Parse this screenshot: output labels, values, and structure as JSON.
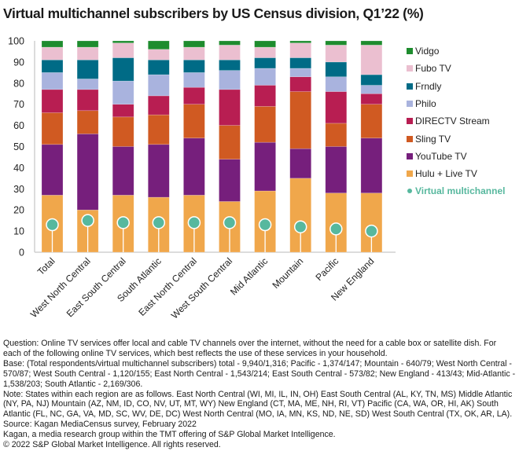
{
  "title": "Virtual multichannel subscribers by US Census division, Q1’22 (%)",
  "chart_data": {
    "type": "bar",
    "stacked": true,
    "title": "Virtual multichannel subscribers by US Census division, Q1’22 (%)",
    "xlabel": "",
    "ylabel": "",
    "ylim": [
      0,
      100
    ],
    "yticks": [
      0,
      10,
      20,
      30,
      40,
      50,
      60,
      70,
      80,
      90,
      100
    ],
    "grid": false,
    "legend_position": "right",
    "categories": [
      "Total",
      "West North Central",
      "East South Central",
      "South Atlantic",
      "East North Central",
      "West South Central",
      "Mid Atlantic",
      "Mountain",
      "Pacific",
      "New England"
    ],
    "series": [
      {
        "name": "Hulu + Live TV",
        "color": "#f0a74b",
        "values": [
          27,
          20,
          27,
          26,
          27,
          24,
          29,
          35,
          28,
          28
        ]
      },
      {
        "name": "YouTube TV",
        "color": "#761f7c",
        "values": [
          24,
          36,
          23,
          25,
          27,
          20,
          23,
          14,
          22,
          26
        ]
      },
      {
        "name": "Sling TV",
        "color": "#d05a22",
        "values": [
          15,
          11,
          14,
          14,
          16,
          16,
          17,
          27,
          11,
          16
        ]
      },
      {
        "name": "DIRECTV Stream",
        "color": "#b81e52",
        "values": [
          11,
          10,
          6,
          9,
          8,
          17,
          10,
          7,
          15,
          5
        ]
      },
      {
        "name": "Philo",
        "color": "#a9b3de",
        "values": [
          8,
          5,
          11,
          10,
          7,
          9,
          8,
          4,
          7,
          4
        ]
      },
      {
        "name": "Frndly",
        "color": "#006b86",
        "values": [
          6,
          9,
          11,
          7,
          6,
          5,
          5,
          5,
          7,
          5
        ]
      },
      {
        "name": "Fubo TV",
        "color": "#ebbfd0",
        "values": [
          6,
          6,
          7,
          5,
          6,
          7,
          5,
          7,
          8,
          14
        ]
      },
      {
        "name": "Vidgo",
        "color": "#1e8c2e",
        "values": [
          3,
          3,
          1,
          4,
          3,
          2,
          3,
          1,
          2,
          2
        ]
      }
    ],
    "overlay": {
      "name": "Virtual multichannel",
      "type": "dot",
      "color": "#57b89e",
      "values": [
        13,
        15,
        14,
        14,
        14,
        14,
        13,
        12,
        11,
        10
      ]
    },
    "legend_order": [
      "Vidgo",
      "Fubo TV",
      "Frndly",
      "Philo",
      "DIRECTV Stream",
      "Sling TV",
      "YouTube TV",
      "Hulu + Live TV",
      "Virtual multichannel"
    ]
  },
  "notes": {
    "question": "Question: Online TV services offer local and cable TV channels over the internet, without the need for a cable box or satellite dish. For each of the following online TV services, which best reflects the use of these services in your household.",
    "base": "Base: (Total respondents/virtual multichannel subscribers) total - 9,940/1,316; Pacific - 1,374/147; Mountain - 640/79; West North Central - 570/87; West South Central - 1,120/155; East North Central - 1,543/214; East South Central - 573/82; New England - 413/43; Mid-Atlantic - 1,538/203; South Atlantic - 2,169/306.",
    "note": "Note: States within each region are as follows. East North Central (WI, MI, IL, IN, OH) East South Central (AL, KY, TN, MS) Middle Atlantic (NY, PA, NJ) Mountain (AZ, NM, ID, CO, NV, UT, MT, WY) New England (CT, MA, ME, NH, RI, VT) Pacific (CA, WA, OR, HI, AK) South Atlantic (FL, NC, GA, VA, MD, SC, WV, DE, DC) West North Central (MO, IA, MN, KS, ND, NE, SD) West South Central (TX, OK, AR, LA).",
    "source": "Source: Kagan MediaCensus survey, February 2022",
    "attribution": "Kagan, a media research group within the TMT offering of S&P Global Market Intelligence.",
    "copyright": "© 2022 S&P Global Market Intelligence. All rights reserved."
  }
}
